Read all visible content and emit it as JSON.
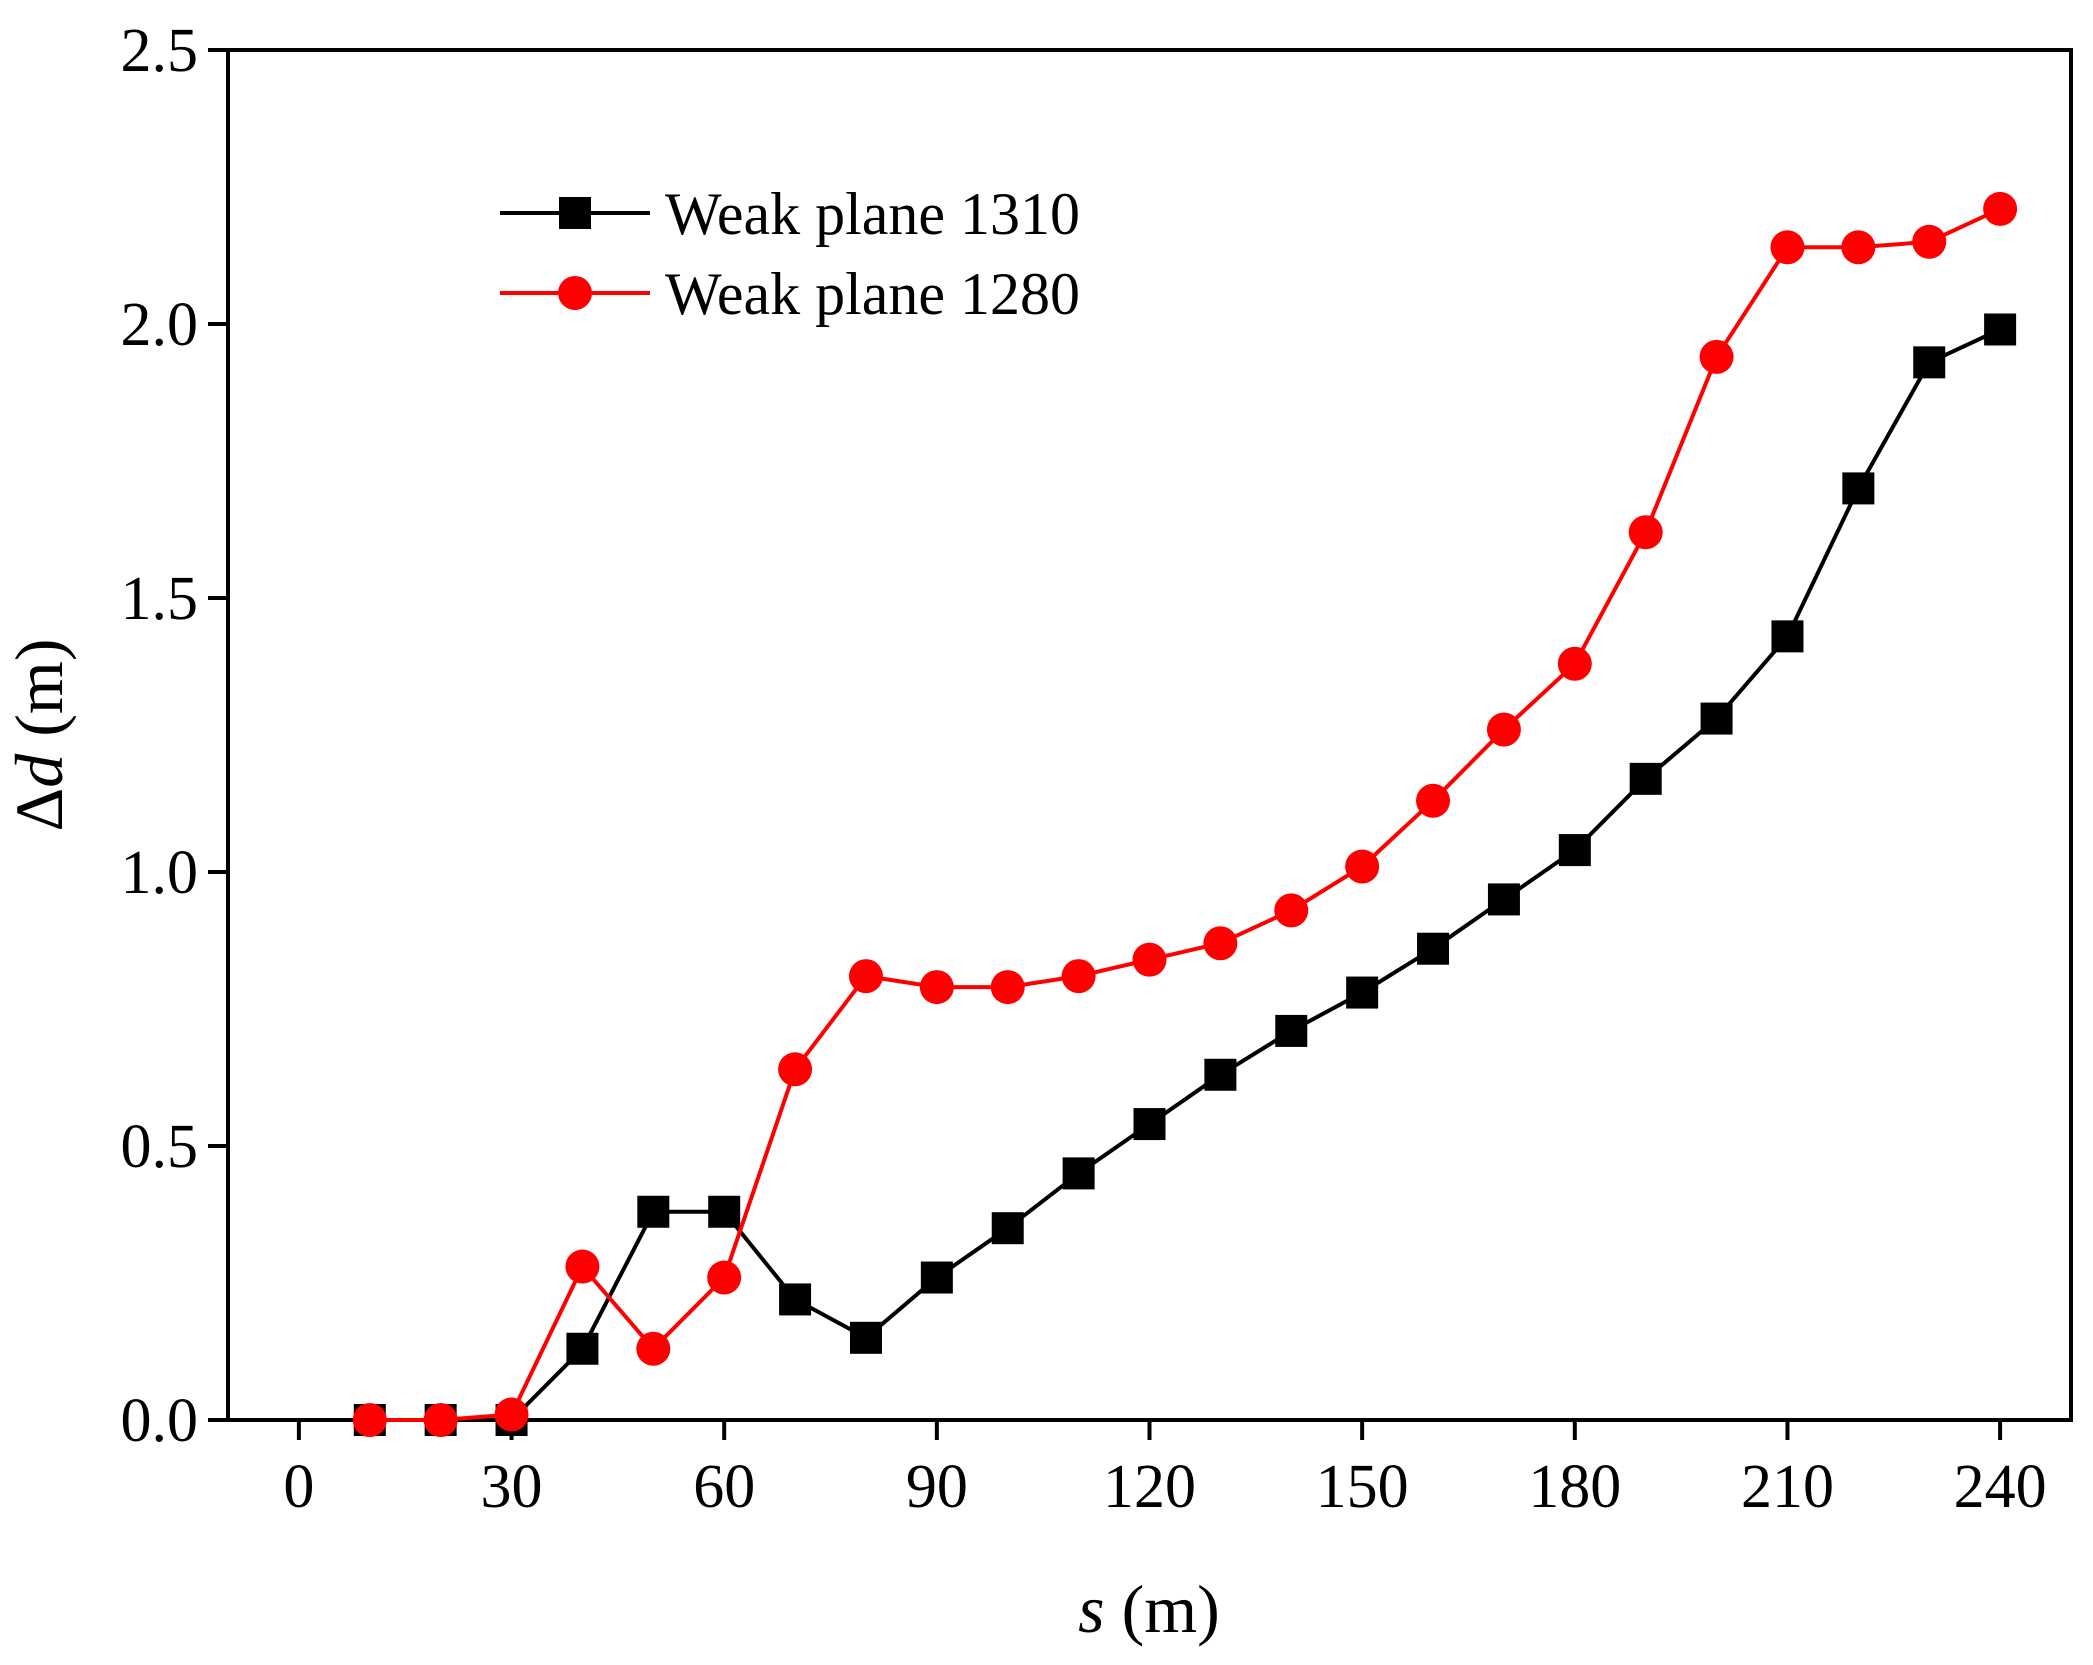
{
  "chart_data": {
    "type": "line",
    "title": "",
    "xlabel": {
      "symbol": "s",
      "unit": " (m)"
    },
    "ylabel": {
      "symbol": "d",
      "prefix": "Δ",
      "unit": " (m)"
    },
    "xlim": [
      -10,
      250
    ],
    "ylim": [
      0,
      2.5
    ],
    "xticks": [
      0,
      30,
      60,
      90,
      120,
      150,
      180,
      210,
      240
    ],
    "yticks": [
      0.0,
      0.5,
      1.0,
      1.5,
      2.0,
      2.5
    ],
    "ytick_labels": [
      "0.0",
      "0.5",
      "1.0",
      "1.5",
      "2.0",
      "2.5"
    ],
    "grid": false,
    "legend_position": "top-left",
    "x": [
      10,
      20,
      30,
      40,
      50,
      60,
      70,
      80,
      90,
      100,
      110,
      120,
      130,
      140,
      150,
      160,
      170,
      180,
      190,
      200,
      210,
      220,
      230,
      240
    ],
    "series": [
      {
        "name": "Weak plane 1310",
        "color": "#000000",
        "marker": "square",
        "values": [
          0.0,
          0.0,
          0.0,
          0.13,
          0.38,
          0.38,
          0.22,
          0.15,
          0.26,
          0.35,
          0.45,
          0.54,
          0.63,
          0.71,
          0.78,
          0.86,
          0.95,
          1.04,
          1.17,
          1.28,
          1.43,
          1.7,
          1.93,
          1.99
        ]
      },
      {
        "name": "Weak plane 1280",
        "color": "#ff0000",
        "marker": "circle",
        "values": [
          0.0,
          0.0,
          0.01,
          0.28,
          0.13,
          0.26,
          0.64,
          0.81,
          0.79,
          0.79,
          0.81,
          0.84,
          0.87,
          0.93,
          1.01,
          1.13,
          1.26,
          1.38,
          1.62,
          1.94,
          2.14,
          2.14,
          2.15,
          2.21
        ]
      }
    ]
  }
}
